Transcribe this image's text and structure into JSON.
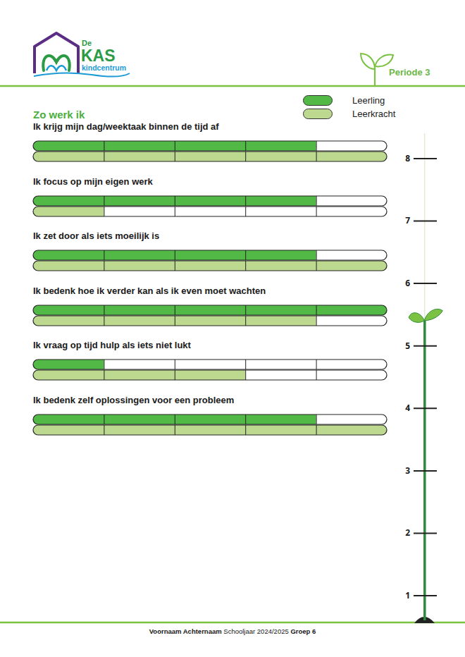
{
  "header": {
    "logo": {
      "small": "De",
      "large": "KAS",
      "sub": "kindcentrum"
    },
    "period": "Periode 3"
  },
  "chart_data": {
    "type": "bar",
    "orientation": "horizontal",
    "title": "Zo werk ik",
    "categories": [
      "Ik krijg mijn dag/weektaak binnen de tijd af",
      "Ik focus op mijn eigen werk",
      "Ik zet door als iets moeilijk is",
      "Ik bedenk hoe ik verder kan als ik even moet wachten",
      "Ik vraag op tijd hulp als iets niet lukt",
      "Ik bedenk zelf oplossingen voor een probleem"
    ],
    "series": [
      {
        "name": "Leerling",
        "color": "#52b947",
        "values": [
          4,
          4,
          4,
          5,
          1,
          4
        ]
      },
      {
        "name": "Leerkracht",
        "color": "#bdd98f",
        "values": [
          5,
          1,
          5,
          4,
          3,
          5
        ]
      }
    ],
    "xlim": [
      0,
      5
    ],
    "xticks": [
      0,
      1,
      2,
      3,
      4,
      5
    ],
    "tick_labels": false,
    "grid": true,
    "legend": "top-right"
  },
  "growth_scale": {
    "ylim": [
      0.6,
      8.4
    ],
    "yticks": [
      1,
      2,
      3,
      4,
      5,
      6,
      7,
      8
    ],
    "value": 5.4
  },
  "footer": {
    "name": "Voornaam Achternaam",
    "school_year": "Schooljaar 2024/2025",
    "group": "Groep 6"
  }
}
